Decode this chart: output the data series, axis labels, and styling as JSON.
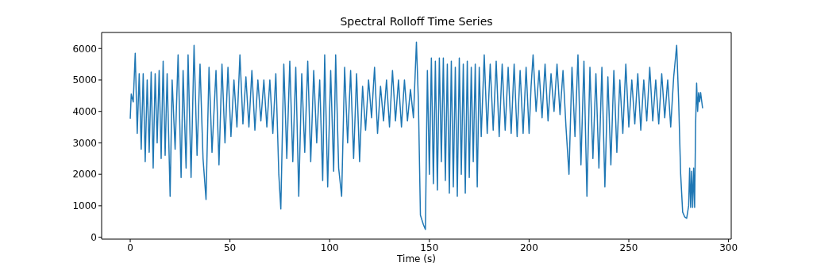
{
  "chart_data": {
    "type": "line",
    "title": "Spectral Rolloff Time Series",
    "xlabel": "Time (s)",
    "xlim": [
      -14.35,
      301.35
    ],
    "ylim": [
      -60,
      6510
    ],
    "xticks": [
      0,
      50,
      100,
      150,
      200,
      250,
      300
    ],
    "yticks": [
      0,
      1000,
      2000,
      3000,
      4000,
      5000,
      6000
    ],
    "x": [
      0,
      0.5,
      1.5,
      2.5,
      3.5,
      4.5,
      5.5,
      6.5,
      7.5,
      8.5,
      9.5,
      10.5,
      11.5,
      12.5,
      13.5,
      14.5,
      15.5,
      16.5,
      17.5,
      18.5,
      20,
      21,
      22.5,
      24,
      25.5,
      26.5,
      28,
      29,
      30.5,
      32,
      33.5,
      35,
      36.5,
      38,
      39.5,
      41,
      43,
      44.5,
      46,
      47.5,
      49,
      50.5,
      52,
      53.5,
      55,
      56.5,
      58,
      59.5,
      61,
      62.5,
      64,
      65.5,
      67,
      68.5,
      70,
      71.5,
      73,
      74.5,
      75.5,
      77,
      78.5,
      80,
      81.5,
      83,
      84.5,
      86,
      87.5,
      89,
      90.5,
      92,
      93.5,
      95,
      96.5,
      97.5,
      99,
      100.5,
      102,
      103,
      104.5,
      106,
      107.5,
      109,
      110.5,
      112,
      113.5,
      115,
      116.5,
      118,
      119.5,
      121,
      122.5,
      124,
      125.5,
      127,
      128.5,
      130,
      131.5,
      133,
      134.5,
      136,
      137.5,
      139,
      140.5,
      142,
      143.5,
      144.5,
      145.5,
      147,
      148,
      149,
      150,
      151,
      152,
      153,
      154,
      155,
      156,
      157,
      158,
      159,
      160,
      161,
      162,
      163,
      164,
      165,
      166,
      167,
      168,
      169,
      170,
      171,
      172,
      173,
      174,
      175,
      176,
      177.5,
      179,
      180.5,
      182,
      183.5,
      185,
      186.5,
      188,
      189.5,
      191,
      192.5,
      194,
      195.5,
      197,
      198.5,
      200,
      201,
      202,
      203.5,
      205,
      206.5,
      208,
      209.5,
      211,
      212.5,
      214,
      215.5,
      217,
      218.5,
      220,
      221.5,
      223,
      224.5,
      226,
      227.5,
      229,
      230.5,
      232,
      233.5,
      235,
      236.5,
      238,
      239.5,
      241,
      242.5,
      244,
      245.5,
      247,
      248.5,
      250,
      251.5,
      253,
      254.5,
      256,
      257.5,
      259,
      260.5,
      262,
      263.5,
      265,
      266.5,
      268,
      269.5,
      271,
      272.5,
      274,
      275,
      276,
      277,
      278,
      279,
      280,
      280.5,
      281,
      281.5,
      282,
      282.5,
      283,
      283.5,
      284,
      284.5,
      285,
      285.5,
      286,
      287
    ],
    "series": [
      {
        "color": "#1f77b4",
        "values": [
          3770,
          4550,
          4300,
          5850,
          3300,
          5200,
          2800,
          5200,
          2400,
          5000,
          2700,
          5250,
          2200,
          5200,
          3000,
          5300,
          2500,
          5600,
          2600,
          5200,
          1300,
          5000,
          2800,
          5800,
          1900,
          5300,
          2200,
          5800,
          1900,
          6100,
          2600,
          5500,
          2500,
          1200,
          5400,
          2700,
          5300,
          2300,
          5500,
          3000,
          5400,
          3200,
          5000,
          3500,
          5800,
          3600,
          5100,
          3500,
          5300,
          3400,
          5000,
          3700,
          5000,
          3500,
          5000,
          3300,
          5200,
          2000,
          900,
          5500,
          2500,
          5600,
          2400,
          5400,
          1300,
          5200,
          2700,
          5600,
          2400,
          5300,
          3000,
          5000,
          1800,
          5800,
          1600,
          5300,
          2100,
          5800,
          2200,
          1300,
          5400,
          3000,
          5300,
          2500,
          5200,
          2400,
          4800,
          3400,
          5000,
          3800,
          5400,
          3300,
          4800,
          3700,
          5000,
          3500,
          5300,
          3700,
          5000,
          3500,
          5000,
          3700,
          4700,
          3800,
          6200,
          4300,
          700,
          400,
          250,
          5300,
          2000,
          5700,
          1700,
          5600,
          1500,
          5700,
          2400,
          5700,
          1800,
          5500,
          1400,
          5600,
          1600,
          5400,
          1300,
          5700,
          2000,
          5500,
          1400,
          5600,
          1900,
          5400,
          2400,
          5500,
          1600,
          5400,
          3200,
          5800,
          3300,
          5500,
          3400,
          5600,
          3200,
          5500,
          3400,
          5400,
          3300,
          5500,
          3200,
          5300,
          3300,
          5400,
          3300,
          4800,
          5800,
          4000,
          5300,
          3800,
          5500,
          3700,
          5200,
          4000,
          5500,
          3900,
          5300,
          3500,
          2000,
          5400,
          3200,
          5800,
          2300,
          5600,
          1300,
          5400,
          2500,
          5200,
          2200,
          5400,
          1600,
          5100,
          2300,
          5300,
          2700,
          5000,
          3300,
          5500,
          3500,
          5000,
          3600,
          5200,
          3400,
          5000,
          3700,
          5400,
          3700,
          5000,
          3600,
          5200,
          3800,
          5000,
          3500,
          5100,
          6100,
          4300,
          2000,
          800,
          650,
          600,
          1000,
          2200,
          950,
          2100,
          950,
          2200,
          950,
          3600,
          4900,
          4000,
          4600,
          4300,
          4600,
          4100
        ]
      }
    ]
  }
}
